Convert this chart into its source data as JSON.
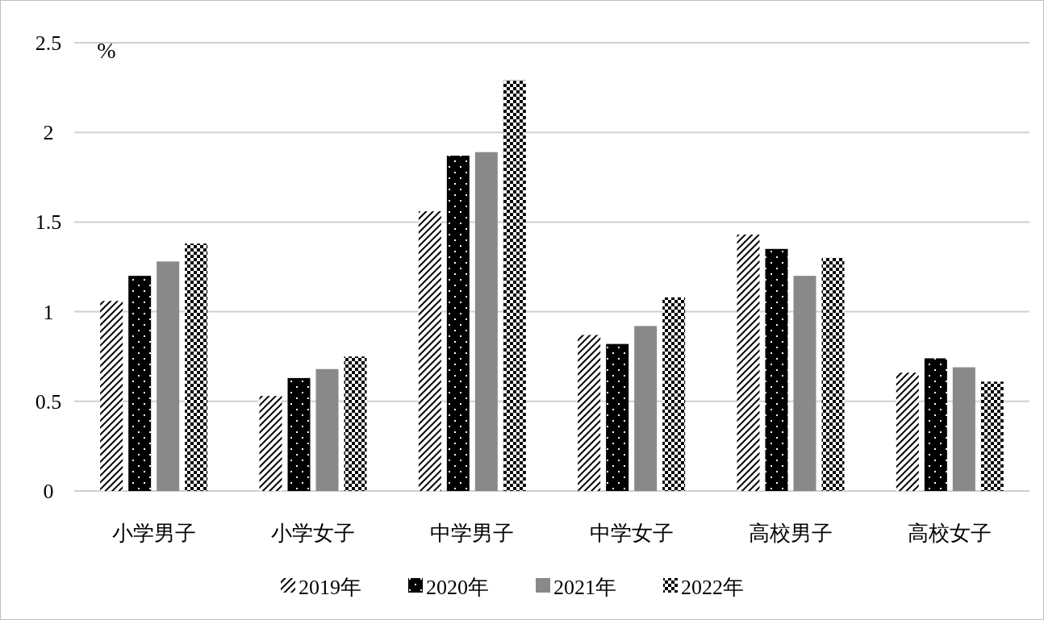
{
  "chart_data": {
    "type": "bar",
    "ylabel": "%",
    "categories": [
      "小学男子",
      "小学女子",
      "中学男子",
      "中学女子",
      "高校男子",
      "高校女子"
    ],
    "series": [
      {
        "name": "2019年",
        "color": "#000000",
        "values": [
          1.06,
          0.53,
          1.56,
          0.87,
          1.43,
          0.66
        ]
      },
      {
        "name": "2020年",
        "color": "#000000",
        "values": [
          1.2,
          0.63,
          1.87,
          0.82,
          1.35,
          0.74
        ]
      },
      {
        "name": "2021年",
        "color": "#898989",
        "values": [
          1.28,
          0.68,
          1.89,
          0.92,
          1.2,
          0.69
        ]
      },
      {
        "name": "2022年",
        "color": "#000000",
        "values": [
          1.38,
          0.75,
          2.29,
          1.08,
          1.3,
          0.61
        ]
      }
    ],
    "ylim": [
      0,
      2.5
    ],
    "yticks": [
      0,
      0.5,
      1,
      1.5,
      2,
      2.5
    ],
    "grid": "y",
    "legend": "bottom"
  }
}
